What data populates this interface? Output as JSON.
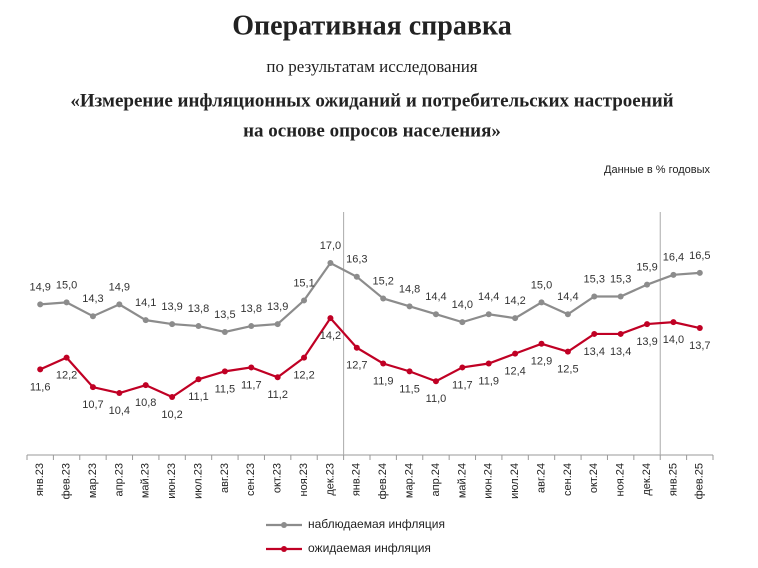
{
  "chart_data": {
    "type": "line",
    "title": "Оперативная справка",
    "subtitle": "по результатам исследования",
    "heading_lines": [
      "«Измерение инфляционных ожиданий и потребительских настроений",
      "на основе опросов населения»"
    ],
    "note": "Данные в % годовых",
    "categories": [
      "янв.23",
      "фев.23",
      "мар.23",
      "апр.23",
      "май.23",
      "июн.23",
      "июл.23",
      "авг.23",
      "сен.23",
      "окт.23",
      "ноя.23",
      "дек.23",
      "янв.24",
      "фев.24",
      "мар.24",
      "апр.24",
      "май.24",
      "июн.24",
      "июл.24",
      "авг.24",
      "сен.24",
      "окт.24",
      "ноя.24",
      "дек.24",
      "янв.25",
      "фев.25"
    ],
    "series": [
      {
        "name": "наблюдаемая инфляция",
        "color": "#8c8c8c",
        "values": [
          14.9,
          15.0,
          14.3,
          14.9,
          14.1,
          13.9,
          13.8,
          13.5,
          13.8,
          13.9,
          15.1,
          17.0,
          16.3,
          15.2,
          14.8,
          14.4,
          14.0,
          14.4,
          14.2,
          15.0,
          14.4,
          15.3,
          15.3,
          15.9,
          16.4,
          16.5
        ],
        "value_labels": [
          "14,9",
          "15,0",
          "14,3",
          "14,9",
          "14,1",
          "13,9",
          "13,8",
          "13,5",
          "13,8",
          "13,9",
          "15,1",
          "17,0",
          "16,3",
          "15,2",
          "14,8",
          "14,4",
          "14,0",
          "14,4",
          "14,2",
          "15,0",
          "14,4",
          "15,3",
          "15,3",
          "15,9",
          "16,4",
          "16,5"
        ]
      },
      {
        "name": "ожидаемая инфляция",
        "color": "#c00024",
        "values": [
          11.6,
          12.2,
          10.7,
          10.4,
          10.8,
          10.2,
          11.1,
          11.5,
          11.7,
          11.2,
          12.2,
          14.2,
          12.7,
          11.9,
          11.5,
          11.0,
          11.7,
          11.9,
          12.4,
          12.9,
          12.5,
          13.4,
          13.4,
          13.9,
          14.0,
          13.7
        ],
        "value_labels": [
          "11,6",
          "12,2",
          "10,7",
          "10,4",
          "10,8",
          "10,2",
          "11,1",
          "11,5",
          "11,7",
          "11,2",
          "12,2",
          "14,2",
          "12,7",
          "11,9",
          "11,5",
          "11,0",
          "11,7",
          "11,9",
          "12,4",
          "12,9",
          "12,5",
          "13,4",
          "13,4",
          "13,9",
          "14,0",
          "13,7"
        ]
      }
    ]
  }
}
